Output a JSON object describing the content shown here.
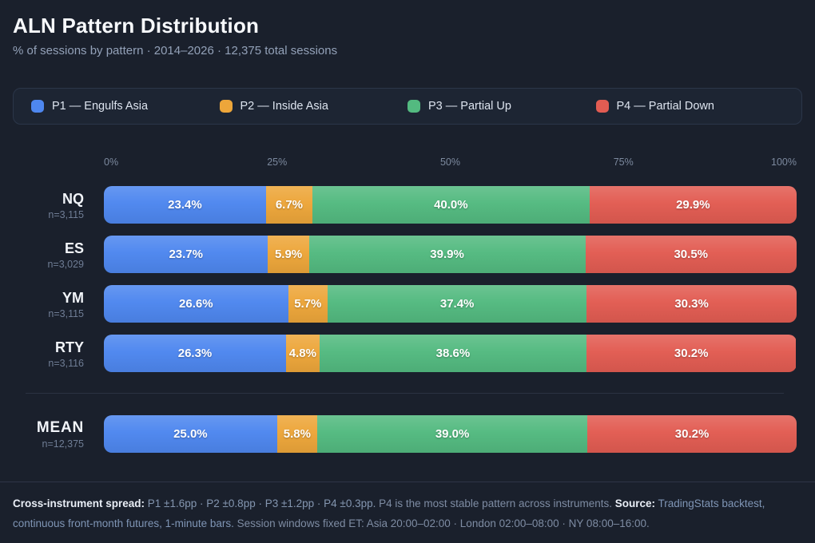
{
  "header": {
    "title": "ALN Pattern Distribution",
    "subtitle": "% of sessions by pattern · 2014–2026 · 12,375 total sessions"
  },
  "legend": [
    {
      "label": "P1 — Engulfs Asia",
      "color": "#4e87ef"
    },
    {
      "label": "P2 — Inside Asia",
      "color": "#eda63a"
    },
    {
      "label": "P3 — Partial Up",
      "color": "#53ba80"
    },
    {
      "label": "P4 — Partial Down",
      "color": "#e25c52"
    }
  ],
  "chart_data": {
    "type": "bar",
    "stacked": true,
    "orientation": "horizontal",
    "xlim": [
      0,
      100
    ],
    "ticks": [
      "0%",
      "25%",
      "50%",
      "75%",
      "100%"
    ],
    "categories": [
      "NQ",
      "ES",
      "YM",
      "RTY"
    ],
    "n_labels": [
      "n=3,115",
      "n=3,029",
      "n=3,115",
      "n=3,116"
    ],
    "series": [
      {
        "name": "P1 — Engulfs Asia",
        "color": "#4e87ef",
        "values": [
          23.4,
          23.7,
          26.6,
          26.3
        ]
      },
      {
        "name": "P2 — Inside Asia",
        "color": "#eda63a",
        "values": [
          6.7,
          5.9,
          5.7,
          4.8
        ]
      },
      {
        "name": "P3 — Partial Up",
        "color": "#53ba80",
        "values": [
          40.0,
          39.9,
          37.4,
          38.6
        ]
      },
      {
        "name": "P4 — Partial Down",
        "color": "#e25c52",
        "values": [
          29.9,
          30.5,
          30.3,
          30.2
        ]
      }
    ],
    "mean": {
      "label": "MEAN",
      "n": "n=12,375",
      "values": [
        25.0,
        5.8,
        39.0,
        30.2
      ]
    }
  },
  "footer": {
    "bold1": "Cross-instrument spread:",
    "stats": " P1 ±1.6pp · P2 ±0.8pp · P3 ±1.2pp · P4 ±0.3pp.",
    "text1": " P4 is the most stable pattern across instruments. ",
    "bold2": "Source:",
    "source": " TradingStats backtest, continuous front-month futures, 1-minute bars.",
    "text2": " Session windows fixed ET: Asia 20:00–02:00 · London 02:00–08:00 · NY 08:00–16:00."
  }
}
